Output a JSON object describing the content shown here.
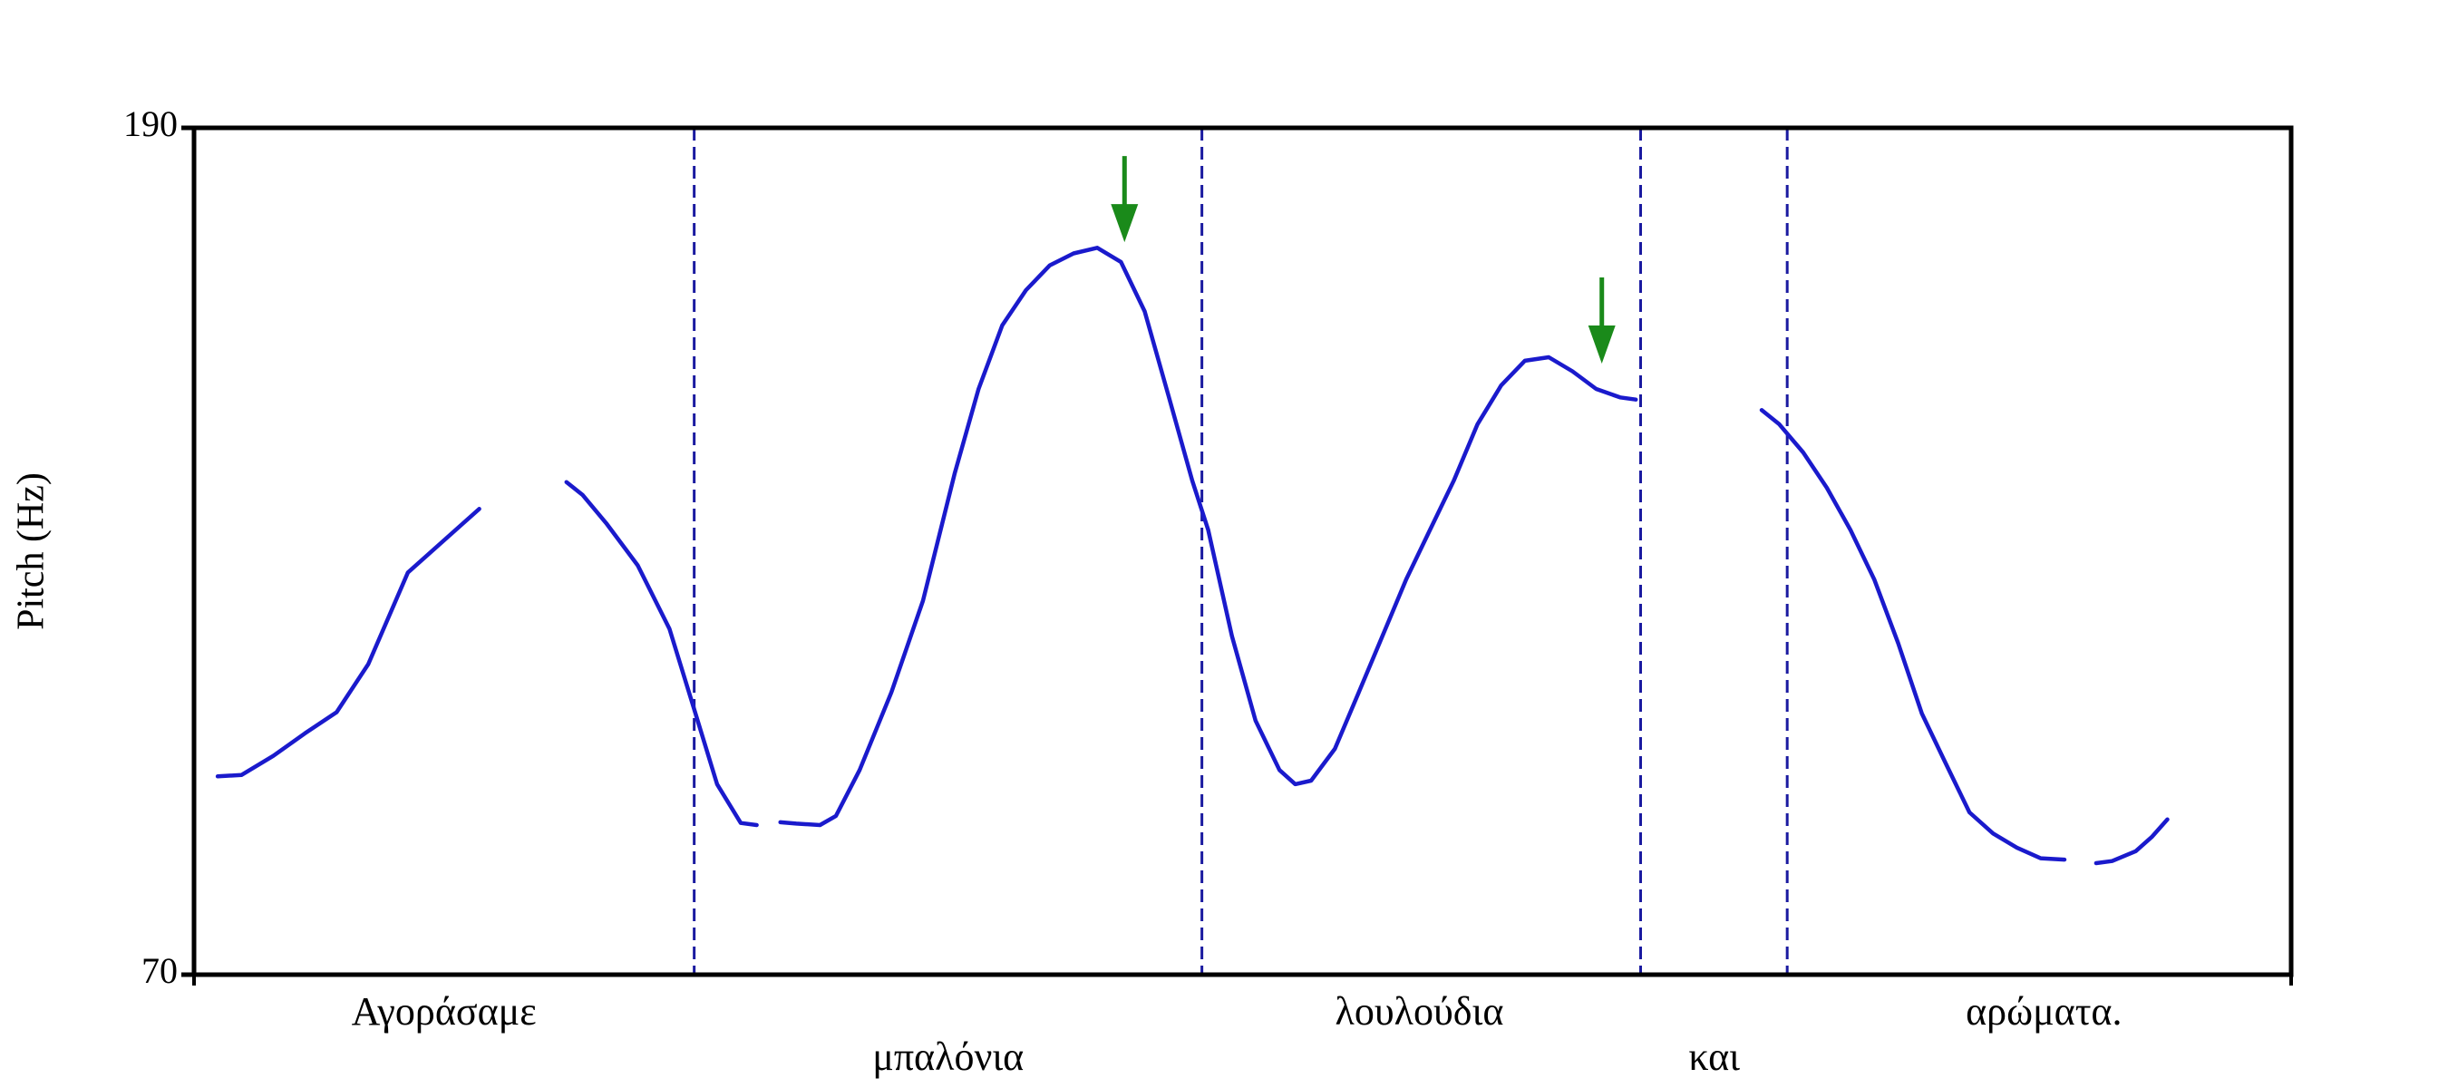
{
  "chart_data": {
    "type": "line",
    "ylabel": "Pitch (Hz)",
    "ylim": [
      70,
      190
    ],
    "xlim": [
      0,
      1
    ],
    "y_ticks": [
      "190",
      "70"
    ],
    "grid": false,
    "colors": {
      "pitch": "#1a1acc",
      "boundary": "#1a1aa0",
      "arrow": "#1a8a1a",
      "axes": "#000000"
    },
    "boundaries": [
      0.2385,
      0.4806,
      0.6898,
      0.7597
    ],
    "words": [
      {
        "text": "Αγοράσαμε",
        "x": 0.1192,
        "row": 1
      },
      {
        "text": "μπαλόνια",
        "x": 0.3596,
        "row": 2
      },
      {
        "text": "λουλούδια",
        "x": 0.5843,
        "row": 1
      },
      {
        "text": "και",
        "x": 0.7249,
        "row": 2
      },
      {
        "text": "αρώματα.",
        "x": 0.8821,
        "row": 1
      }
    ],
    "arrows": [
      {
        "x": 0.4437,
        "y_top": 186,
        "y_tip": 173.8
      },
      {
        "x": 0.6713,
        "y_top": 168.8,
        "y_tip": 156.6
      }
    ],
    "series": [
      {
        "segment": 1,
        "points": [
          [
            0.0113,
            98.1
          ],
          [
            0.0227,
            98.3
          ],
          [
            0.0378,
            101
          ],
          [
            0.0529,
            104.2
          ],
          [
            0.068,
            107.2
          ],
          [
            0.0831,
            114
          ],
          [
            0.102,
            127
          ],
          [
            0.136,
            136
          ]
        ]
      },
      {
        "segment": 2,
        "points": [
          [
            0.1776,
            139.8
          ],
          [
            0.1852,
            138
          ],
          [
            0.1965,
            134
          ],
          [
            0.2116,
            128
          ],
          [
            0.2267,
            119
          ],
          [
            0.2381,
            108
          ],
          [
            0.2494,
            97
          ],
          [
            0.2607,
            91.5
          ],
          [
            0.2683,
            91.2
          ]
        ]
      },
      {
        "segment": 3,
        "points": [
          [
            0.2796,
            91.6
          ],
          [
            0.2872,
            91.4
          ],
          [
            0.2985,
            91.2
          ],
          [
            0.3061,
            92.5
          ],
          [
            0.3174,
            99
          ],
          [
            0.3325,
            110
          ],
          [
            0.3476,
            123
          ],
          [
            0.3627,
            141
          ],
          [
            0.3741,
            153
          ],
          [
            0.3854,
            162
          ],
          [
            0.3967,
            167
          ],
          [
            0.408,
            170.5
          ],
          [
            0.4194,
            172.2
          ],
          [
            0.4307,
            173
          ],
          [
            0.442,
            171
          ],
          [
            0.4533,
            164
          ],
          [
            0.4647,
            152
          ],
          [
            0.476,
            140
          ],
          [
            0.4836,
            133
          ],
          [
            0.4949,
            118
          ],
          [
            0.5062,
            106
          ],
          [
            0.5176,
            99
          ],
          [
            0.5251,
            97
          ],
          [
            0.5327,
            97.5
          ],
          [
            0.544,
            102
          ],
          [
            0.5554,
            110
          ],
          [
            0.5667,
            118
          ],
          [
            0.578,
            126
          ],
          [
            0.5893,
            133
          ],
          [
            0.6007,
            140
          ],
          [
            0.612,
            148
          ],
          [
            0.6233,
            153.5
          ],
          [
            0.6346,
            157
          ],
          [
            0.646,
            157.5
          ],
          [
            0.6573,
            155.5
          ],
          [
            0.6686,
            153
          ],
          [
            0.68,
            151.8
          ],
          [
            0.6875,
            151.5
          ]
        ]
      },
      {
        "segment": 4,
        "points": [
          [
            0.7475,
            150
          ],
          [
            0.7559,
            148
          ],
          [
            0.7673,
            144
          ],
          [
            0.7786,
            139
          ],
          [
            0.7899,
            133
          ],
          [
            0.8012,
            126
          ],
          [
            0.8126,
            117
          ],
          [
            0.8239,
            107
          ],
          [
            0.8352,
            100
          ],
          [
            0.8466,
            93
          ],
          [
            0.8579,
            90
          ],
          [
            0.8692,
            88
          ],
          [
            0.8805,
            86.5
          ],
          [
            0.8919,
            86.3
          ]
        ]
      },
      {
        "segment": 5,
        "points": [
          [
            0.907,
            85.8
          ],
          [
            0.9146,
            86.1
          ],
          [
            0.9259,
            87.5
          ],
          [
            0.9335,
            89.5
          ],
          [
            0.941,
            92
          ]
        ]
      }
    ]
  }
}
